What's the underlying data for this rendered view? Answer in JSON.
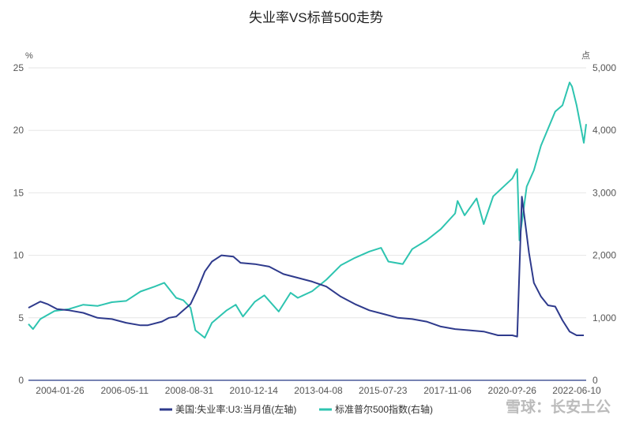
{
  "chart_data": {
    "type": "line",
    "title": "失业率VS标普500走势",
    "left_unit": "%",
    "right_unit": "点",
    "x_ticks": [
      "2004-01-26",
      "2006-05-11",
      "2008-08-31",
      "2010-12-14",
      "2013-04-08",
      "2015-07-23",
      "2017-11-06",
      "2020-0?-26",
      "2022-06-10"
    ],
    "y_left": {
      "ticks": [
        0,
        5,
        10,
        15,
        20,
        25
      ],
      "range": [
        0,
        25
      ]
    },
    "y_right": {
      "ticks": [
        "0",
        "1,000",
        "2,000",
        "3,000",
        "4,000",
        "5,000"
      ],
      "values": [
        0,
        1000,
        2000,
        3000,
        4000,
        5000
      ],
      "range": [
        0,
        5000
      ]
    },
    "grid": true,
    "legend_position": "bottom",
    "x_range": [
      "2003-01-01",
      "2022-07-01"
    ],
    "series": [
      {
        "name": "美国:失业率:U3:当月值(左轴)",
        "axis": "left",
        "color": "#2e3a8c",
        "points": [
          [
            "2003-01",
            5.8
          ],
          [
            "2003-06",
            6.3
          ],
          [
            "2003-09",
            6.1
          ],
          [
            "2004-01",
            5.7
          ],
          [
            "2004-06",
            5.6
          ],
          [
            "2004-12",
            5.4
          ],
          [
            "2005-06",
            5.0
          ],
          [
            "2005-12",
            4.9
          ],
          [
            "2006-06",
            4.6
          ],
          [
            "2006-12",
            4.4
          ],
          [
            "2007-03",
            4.4
          ],
          [
            "2007-09",
            4.7
          ],
          [
            "2007-12",
            5.0
          ],
          [
            "2008-03",
            5.1
          ],
          [
            "2008-06",
            5.6
          ],
          [
            "2008-09",
            6.1
          ],
          [
            "2008-12",
            7.3
          ],
          [
            "2009-03",
            8.7
          ],
          [
            "2009-06",
            9.5
          ],
          [
            "2009-10",
            10.0
          ],
          [
            "2010-03",
            9.9
          ],
          [
            "2010-06",
            9.4
          ],
          [
            "2010-12",
            9.3
          ],
          [
            "2011-06",
            9.1
          ],
          [
            "2011-12",
            8.5
          ],
          [
            "2012-06",
            8.2
          ],
          [
            "2012-12",
            7.9
          ],
          [
            "2013-06",
            7.5
          ],
          [
            "2013-12",
            6.7
          ],
          [
            "2014-06",
            6.1
          ],
          [
            "2014-12",
            5.6
          ],
          [
            "2015-06",
            5.3
          ],
          [
            "2015-12",
            5.0
          ],
          [
            "2016-06",
            4.9
          ],
          [
            "2016-12",
            4.7
          ],
          [
            "2017-06",
            4.3
          ],
          [
            "2017-12",
            4.1
          ],
          [
            "2018-06",
            4.0
          ],
          [
            "2018-12",
            3.9
          ],
          [
            "2019-06",
            3.6
          ],
          [
            "2019-12",
            3.6
          ],
          [
            "2020-02",
            3.5
          ],
          [
            "2020-04",
            14.7
          ],
          [
            "2020-05",
            13.2
          ],
          [
            "2020-07",
            10.2
          ],
          [
            "2020-09",
            7.8
          ],
          [
            "2020-12",
            6.7
          ],
          [
            "2021-03",
            6.0
          ],
          [
            "2021-06",
            5.9
          ],
          [
            "2021-09",
            4.8
          ],
          [
            "2021-12",
            3.9
          ],
          [
            "2022-03",
            3.6
          ],
          [
            "2022-06",
            3.6
          ]
        ]
      },
      {
        "name": "标准普尔500指数(右轴)",
        "axis": "right",
        "color": "#2ec4b0",
        "points": [
          [
            "2003-01",
            900
          ],
          [
            "2003-03",
            820
          ],
          [
            "2003-06",
            980
          ],
          [
            "2003-12",
            1110
          ],
          [
            "2004-06",
            1140
          ],
          [
            "2004-12",
            1210
          ],
          [
            "2005-06",
            1190
          ],
          [
            "2005-12",
            1250
          ],
          [
            "2006-06",
            1270
          ],
          [
            "2006-12",
            1420
          ],
          [
            "2007-06",
            1500
          ],
          [
            "2007-10",
            1560
          ],
          [
            "2008-03",
            1320
          ],
          [
            "2008-06",
            1280
          ],
          [
            "2008-09",
            1160
          ],
          [
            "2008-11",
            800
          ],
          [
            "2009-03",
            680
          ],
          [
            "2009-06",
            920
          ],
          [
            "2009-12",
            1115
          ],
          [
            "2010-04",
            1210
          ],
          [
            "2010-07",
            1020
          ],
          [
            "2010-12",
            1257
          ],
          [
            "2011-04",
            1360
          ],
          [
            "2011-10",
            1100
          ],
          [
            "2012-03",
            1400
          ],
          [
            "2012-06",
            1320
          ],
          [
            "2012-12",
            1425
          ],
          [
            "2013-06",
            1610
          ],
          [
            "2013-12",
            1840
          ],
          [
            "2014-06",
            1960
          ],
          [
            "2014-12",
            2060
          ],
          [
            "2015-05",
            2120
          ],
          [
            "2015-08",
            1900
          ],
          [
            "2016-02",
            1860
          ],
          [
            "2016-06",
            2100
          ],
          [
            "2016-12",
            2240
          ],
          [
            "2017-06",
            2420
          ],
          [
            "2017-12",
            2670
          ],
          [
            "2018-01",
            2870
          ],
          [
            "2018-04",
            2640
          ],
          [
            "2018-09",
            2910
          ],
          [
            "2018-12",
            2500
          ],
          [
            "2019-04",
            2945
          ],
          [
            "2019-12",
            3230
          ],
          [
            "2020-02",
            3380
          ],
          [
            "2020-03",
            2240
          ],
          [
            "2020-06",
            3100
          ],
          [
            "2020-09",
            3360
          ],
          [
            "2020-12",
            3756
          ],
          [
            "2021-06",
            4300
          ],
          [
            "2021-09",
            4400
          ],
          [
            "2021-12",
            4766
          ],
          [
            "2022-01",
            4700
          ],
          [
            "2022-03",
            4400
          ],
          [
            "2022-05",
            4000
          ],
          [
            "2022-06",
            3800
          ],
          [
            "2022-07",
            4100
          ]
        ]
      }
    ]
  },
  "watermark": {
    "text": "雪球：长安土公"
  }
}
